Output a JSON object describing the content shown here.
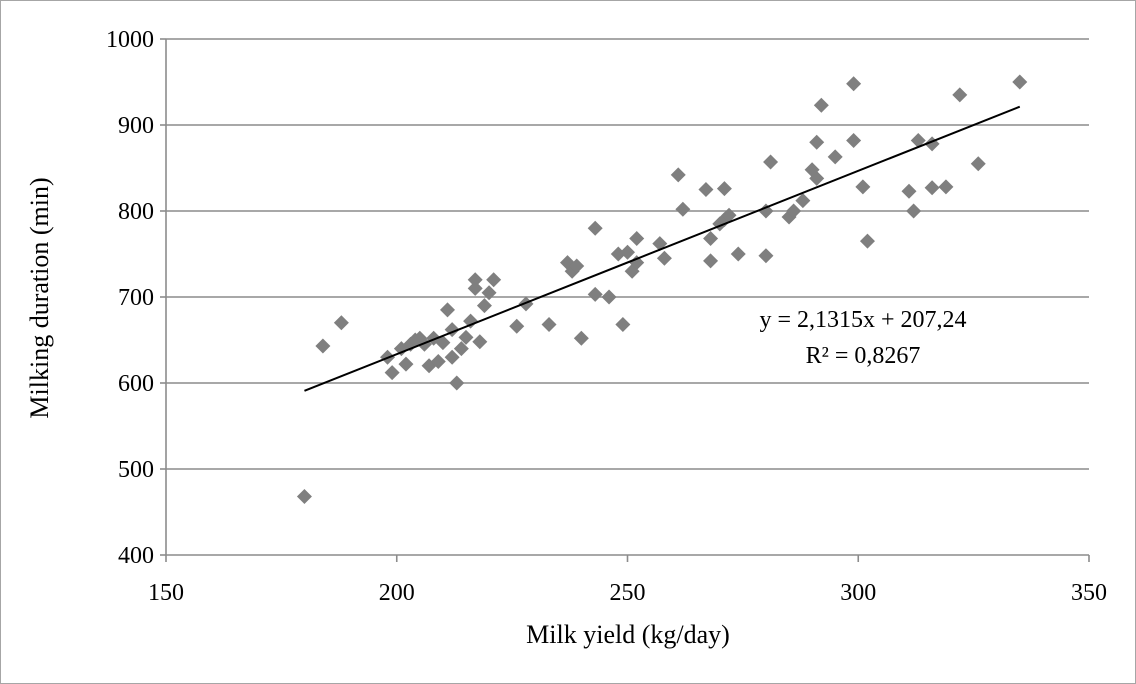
{
  "chart_data": {
    "type": "scatter",
    "xlabel": "Milk yield (kg/day)",
    "ylabel": "Milking duration (min)",
    "xlim": [
      150,
      350
    ],
    "ylim": [
      400,
      1000
    ],
    "xticks": [
      "150",
      "200",
      "250",
      "300",
      "350"
    ],
    "yticks": [
      "400",
      "500",
      "600",
      "700",
      "800",
      "900",
      "1000"
    ],
    "grid": "horizontal",
    "marker": "diamond",
    "point_color": "#7f7f7f",
    "trendline": {
      "slope": 2.1315,
      "intercept": 207.24,
      "x_range": [
        180,
        335
      ],
      "equation": "y = 2,1315x + 207,24",
      "r_squared": "R² = 0,8267"
    },
    "points": [
      [
        180,
        468
      ],
      [
        184,
        643
      ],
      [
        188,
        670
      ],
      [
        198,
        630
      ],
      [
        199,
        612
      ],
      [
        201,
        640
      ],
      [
        202,
        622
      ],
      [
        203,
        645
      ],
      [
        204,
        650
      ],
      [
        205,
        652
      ],
      [
        206,
        645
      ],
      [
        207,
        620
      ],
      [
        208,
        652
      ],
      [
        209,
        625
      ],
      [
        210,
        647
      ],
      [
        211,
        685
      ],
      [
        212,
        630
      ],
      [
        212,
        662
      ],
      [
        213,
        600
      ],
      [
        214,
        640
      ],
      [
        215,
        653
      ],
      [
        216,
        672
      ],
      [
        217,
        710
      ],
      [
        217,
        720
      ],
      [
        218,
        648
      ],
      [
        219,
        690
      ],
      [
        220,
        705
      ],
      [
        221,
        720
      ],
      [
        226,
        666
      ],
      [
        228,
        692
      ],
      [
        233,
        668
      ],
      [
        237,
        740
      ],
      [
        238,
        730
      ],
      [
        239,
        736
      ],
      [
        240,
        652
      ],
      [
        243,
        780
      ],
      [
        243,
        703
      ],
      [
        246,
        700
      ],
      [
        248,
        750
      ],
      [
        249,
        668
      ],
      [
        250,
        752
      ],
      [
        251,
        730
      ],
      [
        252,
        768
      ],
      [
        252,
        740
      ],
      [
        257,
        762
      ],
      [
        258,
        745
      ],
      [
        261,
        842
      ],
      [
        262,
        802
      ],
      [
        267,
        825
      ],
      [
        268,
        742
      ],
      [
        268,
        768
      ],
      [
        270,
        785
      ],
      [
        271,
        790
      ],
      [
        271,
        826
      ],
      [
        272,
        795
      ],
      [
        274,
        750
      ],
      [
        280,
        800
      ],
      [
        280,
        748
      ],
      [
        281,
        857
      ],
      [
        285,
        793
      ],
      [
        286,
        800
      ],
      [
        288,
        812
      ],
      [
        290,
        848
      ],
      [
        291,
        838
      ],
      [
        291,
        880
      ],
      [
        292,
        923
      ],
      [
        295,
        863
      ],
      [
        299,
        948
      ],
      [
        299,
        882
      ],
      [
        301,
        828
      ],
      [
        302,
        765
      ],
      [
        311,
        823
      ],
      [
        312,
        800
      ],
      [
        313,
        882
      ],
      [
        316,
        878
      ],
      [
        316,
        827
      ],
      [
        319,
        828
      ],
      [
        322,
        935
      ],
      [
        326,
        855
      ],
      [
        335,
        950
      ]
    ]
  }
}
